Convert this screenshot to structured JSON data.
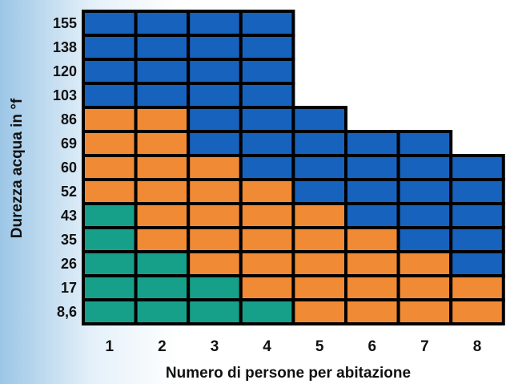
{
  "chart_data": {
    "type": "grid",
    "ylabel": "Durezza acqua in °f",
    "xlabel": "Numero di persone per abitazione",
    "categories": [
      "1",
      "2",
      "3",
      "4",
      "5",
      "6",
      "7",
      "8"
    ],
    "rows": [
      "155",
      "138",
      "120",
      "103",
      "86",
      "69",
      "60",
      "52",
      "43",
      "35",
      "26",
      "17",
      "8,6"
    ],
    "palette": {
      "B": "#1762bd",
      "O": "#f08a34",
      "G": "#16a08a"
    },
    "cells": [
      [
        "B",
        "B",
        "B",
        "B",
        null,
        null,
        null,
        null
      ],
      [
        "B",
        "B",
        "B",
        "B",
        null,
        null,
        null,
        null
      ],
      [
        "B",
        "B",
        "B",
        "B",
        null,
        null,
        null,
        null
      ],
      [
        "B",
        "B",
        "B",
        "B",
        null,
        null,
        null,
        null
      ],
      [
        "O",
        "O",
        "B",
        "B",
        "B",
        null,
        null,
        null
      ],
      [
        "O",
        "O",
        "B",
        "B",
        "B",
        "B",
        "B",
        null
      ],
      [
        "O",
        "O",
        "O",
        "B",
        "B",
        "B",
        "B",
        "B"
      ],
      [
        "O",
        "O",
        "O",
        "O",
        "B",
        "B",
        "B",
        "B"
      ],
      [
        "G",
        "O",
        "O",
        "O",
        "O",
        "B",
        "B",
        "B"
      ],
      [
        "G",
        "O",
        "O",
        "O",
        "O",
        "O",
        "B",
        "B"
      ],
      [
        "G",
        "G",
        "O",
        "O",
        "O",
        "O",
        "O",
        "B"
      ],
      [
        "G",
        "G",
        "G",
        "O",
        "O",
        "O",
        "O",
        "O"
      ],
      [
        "G",
        "G",
        "G",
        "G",
        "O",
        "O",
        "O",
        "O"
      ]
    ]
  }
}
